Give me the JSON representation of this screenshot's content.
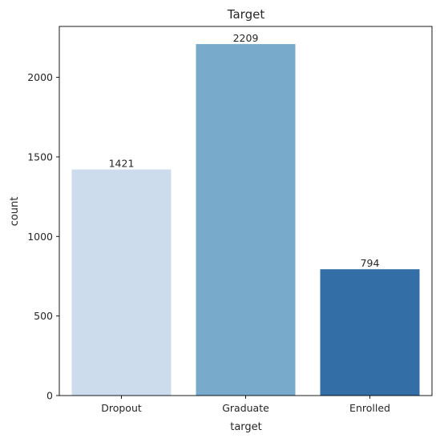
{
  "chart_data": {
    "type": "bar",
    "title": "Target",
    "xlabel": "target",
    "ylabel": "count",
    "categories": [
      "Dropout",
      "Graduate",
      "Enrolled"
    ],
    "values": [
      1421,
      2209,
      794
    ],
    "data_labels": [
      "1421",
      "2209",
      "794"
    ],
    "colors": [
      "#cddcec",
      "#78abcb",
      "#336fa6"
    ],
    "ylim": [
      0,
      2320
    ],
    "yticks": [
      0,
      500,
      1000,
      1500,
      2000
    ],
    "grid": false,
    "legend": "none"
  }
}
